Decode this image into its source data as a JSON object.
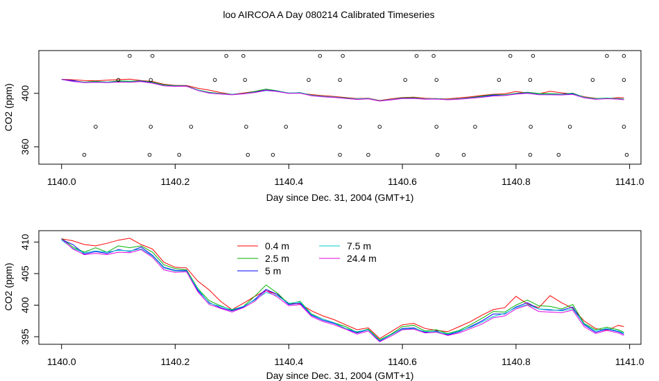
{
  "figure_title": "loo AIRCOA A  Day 080214  Calibrated Timeseries",
  "chart_data": [
    {
      "type": "line",
      "xlabel": "Day since Dec. 31, 2004 (GMT+1)",
      "ylabel": "CO2 (ppm)",
      "xlim": [
        1139.96,
        1141.02
      ],
      "ylim": [
        347,
        432
      ],
      "x_ticks": [
        "1140.0",
        "1140.2",
        "1140.4",
        "1140.6",
        "1140.8",
        "1141.0"
      ],
      "x_tick_values": [
        1140.0,
        1140.2,
        1140.4,
        1140.6,
        1140.8,
        1141.0
      ],
      "y_ticks": [
        "360",
        "400"
      ],
      "y_tick_values": [
        360,
        400
      ],
      "grid": false,
      "series_x": [
        1140.0,
        1140.02,
        1140.04,
        1140.06,
        1140.08,
        1140.1,
        1140.12,
        1140.14,
        1140.16,
        1140.18,
        1140.2,
        1140.22,
        1140.24,
        1140.26,
        1140.28,
        1140.3,
        1140.32,
        1140.34,
        1140.36,
        1140.38,
        1140.4,
        1140.42,
        1140.44,
        1140.46,
        1140.48,
        1140.5,
        1140.52,
        1140.54,
        1140.56,
        1140.58,
        1140.6,
        1140.62,
        1140.64,
        1140.66,
        1140.68,
        1140.7,
        1140.72,
        1140.74,
        1140.76,
        1140.78,
        1140.8,
        1140.82,
        1140.84,
        1140.86,
        1140.88,
        1140.9,
        1140.92,
        1140.94,
        1140.96,
        1140.98,
        1140.99
      ],
      "series": [
        {
          "name": "0.4 m",
          "color": "#ff0000",
          "values": [
            410.5,
            410.2,
            409.6,
            409.4,
            409.8,
            410.3,
            410.6,
            409.6,
            408.9,
            406.8,
            406.0,
            405.9,
            403.8,
            402.4,
            400.6,
            399.3,
            400.3,
            401.4,
            402.3,
            401.7,
            400.3,
            400.2,
            399.1,
            398.3,
            397.7,
            396.9,
            396.1,
            396.4,
            394.7,
            395.8,
            396.9,
            397.1,
            396.3,
            396.0,
            395.8,
            396.6,
            397.4,
            398.4,
            399.3,
            399.6,
            401.4,
            400.2,
            399.6,
            401.5,
            400.4,
            399.5,
            397.5,
            396.3,
            396.0,
            396.8,
            396.6
          ]
        },
        {
          "name": "2.5 m",
          "color": "#00b000",
          "values": [
            410.6,
            409.2,
            408.4,
            409.1,
            408.4,
            409.4,
            409.1,
            409.4,
            408.4,
            406.4,
            405.8,
            405.6,
            402.6,
            400.7,
            399.9,
            399.2,
            399.8,
            401.4,
            403.2,
            401.9,
            400.2,
            400.6,
            398.6,
            397.8,
            397.2,
            396.6,
            395.7,
            396.2,
            394.5,
            395.4,
            396.6,
            396.8,
            395.9,
            396.1,
            395.5,
            396.0,
            396.9,
            397.9,
            399.0,
            398.9,
            400.0,
            400.8,
            399.9,
            399.8,
            399.4,
            400.1,
            397.1,
            396.1,
            396.5,
            396.1,
            395.7
          ]
        },
        {
          "name": "5 m",
          "color": "#0000ff",
          "values": [
            410.4,
            409.6,
            408.1,
            408.5,
            408.2,
            408.8,
            408.5,
            409.2,
            407.9,
            406.0,
            405.5,
            405.5,
            402.3,
            400.4,
            399.6,
            399.1,
            399.7,
            400.9,
            402.5,
            401.7,
            400.1,
            400.3,
            398.4,
            397.6,
            397.1,
            396.3,
            395.6,
            396.1,
            394.3,
            395.3,
            396.3,
            396.4,
            395.7,
            395.9,
            395.3,
            395.8,
            396.6,
            397.5,
            398.6,
            398.6,
            399.7,
            400.4,
            399.4,
            399.2,
            399.2,
            399.7,
            396.9,
            395.7,
            396.2,
            395.8,
            395.4
          ]
        },
        {
          "name": "7.5 m",
          "color": "#00c8c8",
          "values": [
            410.3,
            409.0,
            408.3,
            408.6,
            408.4,
            408.7,
            408.6,
            408.9,
            407.8,
            405.9,
            405.4,
            405.4,
            402.5,
            400.3,
            399.8,
            399.3,
            399.8,
            400.8,
            402.0,
            401.5,
            400.3,
            400.5,
            398.5,
            397.8,
            397.2,
            396.3,
            395.8,
            396.1,
            394.4,
            395.3,
            396.2,
            396.3,
            395.8,
            395.8,
            395.4,
            395.9,
            396.5,
            397.3,
            398.2,
            398.7,
            399.6,
            400.1,
            399.4,
            399.3,
            399.1,
            399.4,
            397.0,
            395.9,
            396.3,
            395.9,
            395.6
          ]
        },
        {
          "name": "24.4 m",
          "color": "#e000e0",
          "values": [
            410.5,
            408.9,
            408.0,
            408.2,
            408.0,
            408.4,
            408.3,
            408.8,
            407.6,
            405.6,
            405.2,
            405.3,
            402.1,
            400.1,
            399.5,
            398.9,
            399.6,
            400.6,
            402.3,
            401.3,
            399.9,
            400.1,
            398.2,
            397.4,
            396.9,
            396.2,
            395.4,
            395.9,
            394.2,
            395.1,
            396.1,
            396.2,
            395.6,
            395.7,
            395.2,
            395.6,
            396.3,
            397.0,
            398.0,
            398.3,
            399.4,
            400.0,
            399.0,
            398.9,
            398.8,
            399.2,
            396.6,
            395.5,
            396.0,
            395.6,
            395.2
          ]
        }
      ],
      "markers": {
        "symbol": "open-circle",
        "points": [
          [
            1140.12,
            428
          ],
          [
            1140.16,
            428
          ],
          [
            1140.29,
            428
          ],
          [
            1140.32,
            428
          ],
          [
            1140.455,
            428
          ],
          [
            1140.495,
            428
          ],
          [
            1140.625,
            428
          ],
          [
            1140.655,
            428
          ],
          [
            1140.79,
            428
          ],
          [
            1140.83,
            428
          ],
          [
            1140.96,
            428
          ],
          [
            1140.99,
            428
          ],
          [
            1140.1,
            410
          ],
          [
            1140.157,
            410
          ],
          [
            1140.27,
            410
          ],
          [
            1140.323,
            410
          ],
          [
            1140.435,
            410
          ],
          [
            1140.49,
            410
          ],
          [
            1140.605,
            410
          ],
          [
            1140.66,
            410
          ],
          [
            1140.77,
            410
          ],
          [
            1140.825,
            410
          ],
          [
            1140.935,
            410
          ],
          [
            1140.99,
            410
          ],
          [
            1140.06,
            375
          ],
          [
            1140.157,
            375
          ],
          [
            1140.228,
            375
          ],
          [
            1140.325,
            375
          ],
          [
            1140.395,
            375
          ],
          [
            1140.49,
            375
          ],
          [
            1140.56,
            375
          ],
          [
            1140.66,
            375
          ],
          [
            1140.728,
            375
          ],
          [
            1140.826,
            375
          ],
          [
            1140.895,
            375
          ],
          [
            1140.99,
            375
          ],
          [
            1140.04,
            354
          ],
          [
            1140.155,
            354
          ],
          [
            1140.207,
            354
          ],
          [
            1140.328,
            354
          ],
          [
            1140.372,
            354
          ],
          [
            1140.49,
            354
          ],
          [
            1140.54,
            354
          ],
          [
            1140.662,
            354
          ],
          [
            1140.708,
            354
          ],
          [
            1140.825,
            354
          ],
          [
            1140.875,
            354
          ],
          [
            1140.995,
            354
          ]
        ]
      }
    },
    {
      "type": "line",
      "xlabel": "Day since Dec. 31, 2004 (GMT+1)",
      "ylabel": "CO2 (ppm)",
      "xlim": [
        1139.96,
        1141.02
      ],
      "ylim": [
        393.8,
        411.8
      ],
      "x_ticks": [
        "1140.0",
        "1140.2",
        "1140.4",
        "1140.6",
        "1140.8",
        "1141.0"
      ],
      "x_tick_values": [
        1140.0,
        1140.2,
        1140.4,
        1140.6,
        1140.8,
        1141.0
      ],
      "y_ticks": [
        "395",
        "400",
        "405",
        "410"
      ],
      "y_tick_values": [
        395,
        400,
        405,
        410
      ],
      "grid": false,
      "legend": {
        "placement": "top-center",
        "entries": [
          {
            "label": "0.4 m",
            "color": "#ff0000"
          },
          {
            "label": "2.5 m",
            "color": "#00b000"
          },
          {
            "label": "5 m",
            "color": "#0000ff"
          },
          {
            "label": "7.5 m",
            "color": "#00c8c8"
          },
          {
            "label": "24.4 m",
            "color": "#e000e0"
          }
        ]
      },
      "series_x": [
        1140.0,
        1140.02,
        1140.04,
        1140.06,
        1140.08,
        1140.1,
        1140.12,
        1140.14,
        1140.16,
        1140.18,
        1140.2,
        1140.22,
        1140.24,
        1140.26,
        1140.28,
        1140.3,
        1140.32,
        1140.34,
        1140.36,
        1140.38,
        1140.4,
        1140.42,
        1140.44,
        1140.46,
        1140.48,
        1140.5,
        1140.52,
        1140.54,
        1140.56,
        1140.58,
        1140.6,
        1140.62,
        1140.64,
        1140.66,
        1140.68,
        1140.7,
        1140.72,
        1140.74,
        1140.76,
        1140.78,
        1140.8,
        1140.82,
        1140.84,
        1140.86,
        1140.88,
        1140.9,
        1140.92,
        1140.94,
        1140.96,
        1140.98,
        1140.99
      ],
      "series": [
        {
          "name": "0.4 m",
          "color": "#ff0000",
          "values": [
            410.5,
            410.2,
            409.6,
            409.4,
            409.8,
            410.3,
            410.6,
            409.6,
            408.9,
            406.8,
            406.0,
            405.9,
            403.8,
            402.4,
            400.6,
            399.3,
            400.3,
            401.4,
            402.3,
            401.7,
            400.3,
            400.2,
            399.1,
            398.3,
            397.7,
            396.9,
            396.1,
            396.4,
            394.7,
            395.8,
            396.9,
            397.1,
            396.3,
            396.0,
            395.8,
            396.6,
            397.4,
            398.4,
            399.3,
            399.6,
            401.4,
            400.2,
            399.6,
            401.5,
            400.4,
            399.5,
            397.5,
            396.3,
            396.0,
            396.8,
            396.6
          ]
        },
        {
          "name": "2.5 m",
          "color": "#00b000",
          "values": [
            410.6,
            409.2,
            408.4,
            409.1,
            408.4,
            409.4,
            409.1,
            409.4,
            408.4,
            406.4,
            405.8,
            405.6,
            402.6,
            400.7,
            399.9,
            399.2,
            399.8,
            401.4,
            403.2,
            401.9,
            400.2,
            400.6,
            398.6,
            397.8,
            397.2,
            396.6,
            395.7,
            396.2,
            394.5,
            395.4,
            396.6,
            396.8,
            395.9,
            396.1,
            395.5,
            396.0,
            396.9,
            397.9,
            399.0,
            398.9,
            400.0,
            400.8,
            399.9,
            399.8,
            399.4,
            400.1,
            397.1,
            396.1,
            396.5,
            396.1,
            395.7
          ]
        },
        {
          "name": "5 m",
          "color": "#0000ff",
          "values": [
            410.4,
            409.6,
            408.1,
            408.5,
            408.2,
            408.8,
            408.5,
            409.2,
            407.9,
            406.0,
            405.5,
            405.5,
            402.3,
            400.4,
            399.6,
            399.1,
            399.7,
            400.9,
            402.5,
            401.7,
            400.1,
            400.3,
            398.4,
            397.6,
            397.1,
            396.3,
            395.6,
            396.1,
            394.3,
            395.3,
            396.3,
            396.4,
            395.7,
            395.9,
            395.3,
            395.8,
            396.6,
            397.5,
            398.6,
            398.6,
            399.7,
            400.4,
            399.4,
            399.2,
            399.2,
            399.7,
            396.9,
            395.7,
            396.2,
            395.8,
            395.4
          ]
        },
        {
          "name": "7.5 m",
          "color": "#00c8c8",
          "values": [
            410.3,
            409.0,
            408.3,
            408.6,
            408.4,
            408.7,
            408.6,
            408.9,
            407.8,
            405.9,
            405.4,
            405.4,
            402.5,
            400.3,
            399.8,
            399.3,
            399.8,
            400.8,
            402.0,
            401.5,
            400.3,
            400.5,
            398.5,
            397.8,
            397.2,
            396.3,
            395.8,
            396.1,
            394.4,
            395.3,
            396.2,
            396.3,
            395.8,
            395.8,
            395.4,
            395.9,
            396.5,
            397.3,
            398.2,
            398.7,
            399.6,
            400.1,
            399.4,
            399.3,
            399.1,
            399.4,
            397.0,
            395.9,
            396.3,
            395.9,
            395.6
          ]
        },
        {
          "name": "24.4 m",
          "color": "#e000e0",
          "values": [
            410.5,
            408.9,
            408.0,
            408.2,
            408.0,
            408.4,
            408.3,
            408.8,
            407.6,
            405.6,
            405.2,
            405.3,
            402.1,
            400.1,
            399.5,
            398.9,
            399.6,
            400.6,
            402.3,
            401.3,
            399.9,
            400.1,
            398.2,
            397.4,
            396.9,
            396.2,
            395.4,
            395.9,
            394.2,
            395.1,
            396.1,
            396.2,
            395.6,
            395.7,
            395.2,
            395.6,
            396.3,
            397.0,
            398.0,
            398.3,
            399.4,
            400.0,
            399.0,
            398.9,
            398.8,
            399.2,
            396.6,
            395.5,
            396.0,
            395.6,
            395.2
          ]
        }
      ]
    }
  ]
}
